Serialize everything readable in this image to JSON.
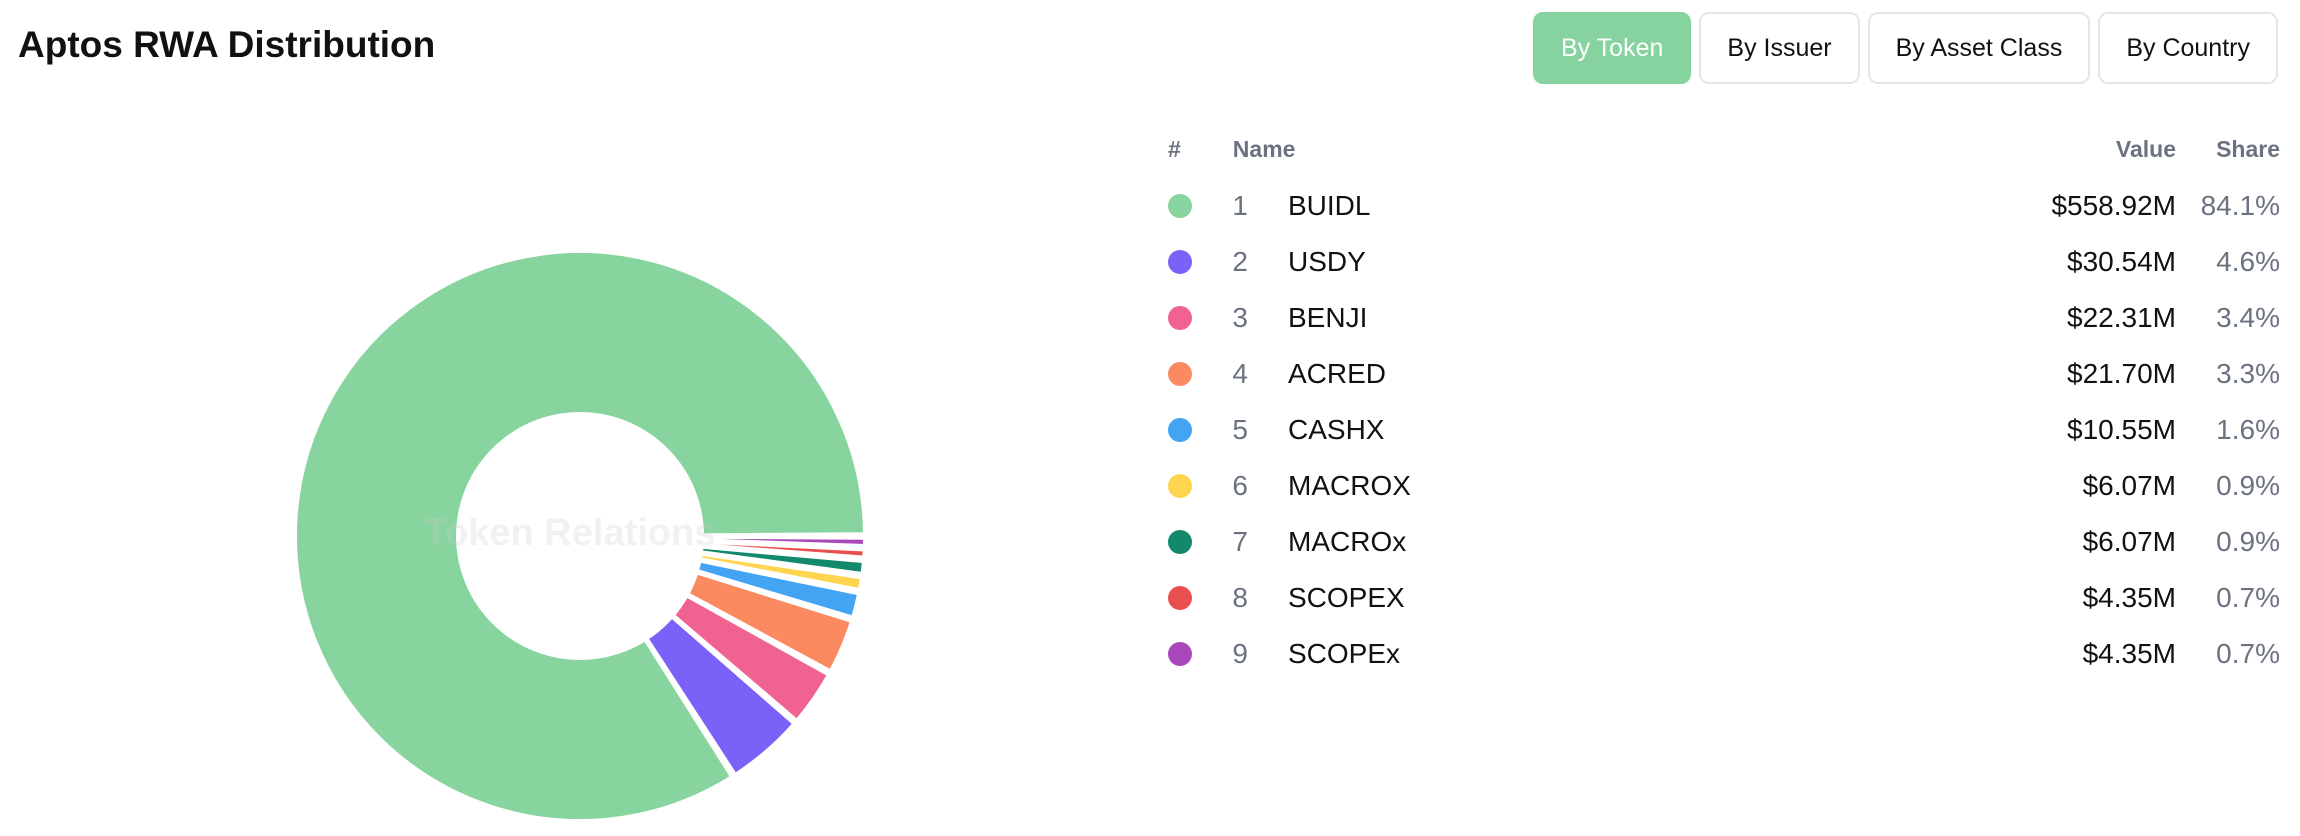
{
  "page": {
    "title": "Aptos RWA Distribution",
    "watermark": "Token Relations"
  },
  "toolbar": {
    "buttons": [
      {
        "label": "By Token",
        "active": true
      },
      {
        "label": "By Issuer",
        "active": false
      },
      {
        "label": "By Asset Class",
        "active": false
      },
      {
        "label": "By Country",
        "active": false
      }
    ]
  },
  "table": {
    "headers": {
      "rank": "#",
      "name": "Name",
      "value": "Value",
      "share": "Share"
    }
  },
  "chart_data": {
    "type": "pie",
    "categories": [
      "BUIDL",
      "USDY",
      "BENJI",
      "ACRED",
      "CASHX",
      "MACROX",
      "MACROx",
      "SCOPEX",
      "SCOPEx"
    ],
    "ranks": [
      "1",
      "2",
      "3",
      "4",
      "5",
      "6",
      "7",
      "8",
      "9"
    ],
    "values": [
      558.92,
      30.54,
      22.31,
      21.7,
      10.55,
      6.07,
      6.07,
      4.35,
      4.35
    ],
    "value_labels": [
      "$558.92M",
      "$30.54M",
      "$22.31M",
      "$21.70M",
      "$10.55M",
      "$6.07M",
      "$6.07M",
      "$4.35M",
      "$4.35M"
    ],
    "shares": [
      "84.1%",
      "4.6%",
      "3.4%",
      "3.3%",
      "1.6%",
      "0.9%",
      "0.9%",
      "0.7%",
      "0.7%"
    ],
    "colors": [
      "#88d49e",
      "#7b61f8",
      "#f06391",
      "#fb8a61",
      "#43a4f3",
      "#ffd54f",
      "#12896a",
      "#ea4f4f",
      "#ab47bc"
    ],
    "donut": true,
    "legend": "right"
  }
}
